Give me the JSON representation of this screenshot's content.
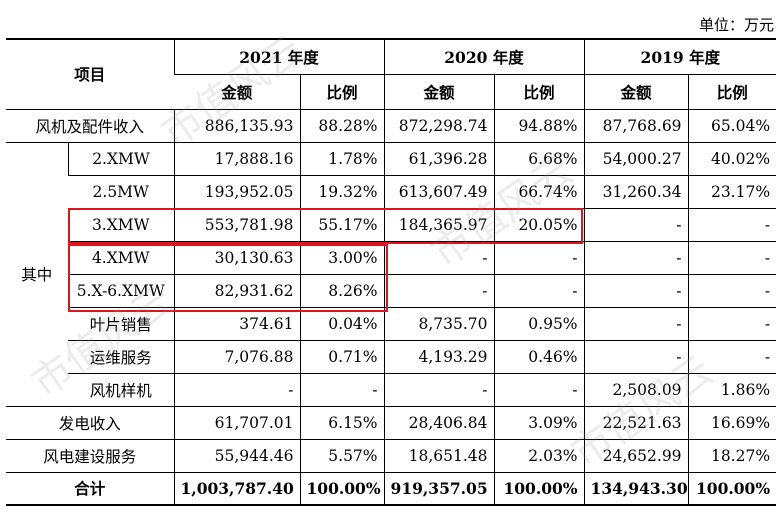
{
  "unit_label": "单位：万元",
  "header": {
    "item_label": "项目",
    "years": [
      "2021 年度",
      "2020 年度",
      "2019 年度"
    ],
    "amount_label": "金额",
    "ratio_label": "比例"
  },
  "group_label": "其中",
  "rows": {
    "turbine": {
      "label": "风机及配件收入",
      "v": [
        "886,135.93",
        "88.28%",
        "872,298.74",
        "94.88%",
        "87,768.69",
        "65.04%"
      ]
    },
    "r2x": {
      "label": "2.XMW",
      "v": [
        "17,888.16",
        "1.78%",
        "61,396.28",
        "6.68%",
        "54,000.27",
        "40.02%"
      ]
    },
    "r25": {
      "label": "2.5MW",
      "v": [
        "193,952.05",
        "19.32%",
        "613,607.49",
        "66.74%",
        "31,260.34",
        "23.17%"
      ]
    },
    "r3x": {
      "label": "3.XMW",
      "v": [
        "553,781.98",
        "55.17%",
        "184,365.97",
        "20.05%",
        "-",
        "-"
      ]
    },
    "r4x": {
      "label": "4.XMW",
      "v": [
        "30,130.63",
        "3.00%",
        "-",
        "-",
        "-",
        "-"
      ]
    },
    "r5x": {
      "label": "5.X-6.XMW",
      "v": [
        "82,931.62",
        "8.26%",
        "-",
        "-",
        "-",
        "-"
      ]
    },
    "blade": {
      "label": "叶片销售",
      "v": [
        "374.61",
        "0.04%",
        "8,735.70",
        "0.95%",
        "-",
        "-"
      ]
    },
    "om": {
      "label": "运维服务",
      "v": [
        "7,076.88",
        "0.71%",
        "4,193.29",
        "0.46%",
        "-",
        "-"
      ]
    },
    "sample": {
      "label": "风机样机",
      "v": [
        "-",
        "-",
        "-",
        "-",
        "2,508.09",
        "1.86%"
      ]
    },
    "power": {
      "label": "发电收入",
      "v": [
        "61,707.01",
        "6.15%",
        "28,406.84",
        "3.09%",
        "22,521.63",
        "16.69%"
      ]
    },
    "build": {
      "label": "风电建设服务",
      "v": [
        "55,944.46",
        "5.57%",
        "18,651.48",
        "2.03%",
        "24,652.99",
        "18.27%"
      ]
    },
    "total": {
      "label": "合计",
      "v": [
        "1,003,787.40",
        "100.00%",
        "919,357.05",
        "100.00%",
        "134,943.30",
        "100.00%"
      ]
    }
  },
  "watermark_text": "市值风云",
  "highlight_color": "#e0141c"
}
